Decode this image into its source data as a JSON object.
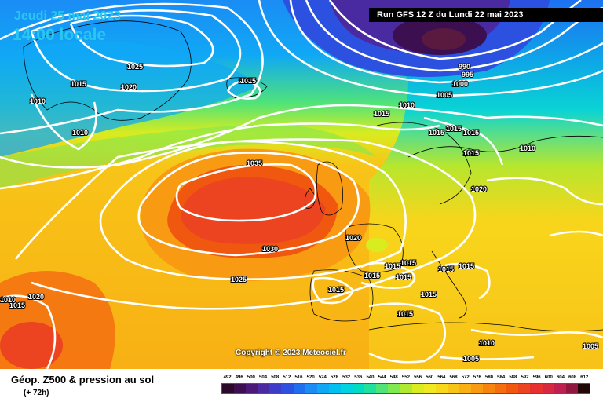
{
  "map": {
    "date_line": "Jeudi 25 mai 2023",
    "time_line": "14:00 locale",
    "run_label": "Run GFS 12 Z du Lundi 22 mai 2023",
    "copyright": "Copyright © 2023 Meteociel.fr",
    "isobars": [
      "1025",
      "1015",
      "1020",
      "1015",
      "1010",
      "1010",
      "1015",
      "1035",
      "1030",
      "1025",
      "1020",
      "1015",
      "1010",
      "990",
      "995",
      "1000",
      "1005",
      "1010",
      "1015",
      "1015",
      "1015",
      "1015",
      "1015",
      "1020",
      "1015",
      "1015",
      "1015",
      "1015",
      "1015",
      "1015",
      "1015",
      "1015",
      "1010",
      "1005",
      "1005",
      "1020",
      "1015",
      "1010"
    ]
  },
  "footer": {
    "title": "Géop. Z500 & pression au sol",
    "subtitle": "(+ 72h)"
  },
  "legend": {
    "values": [
      "492",
      "496",
      "500",
      "504",
      "508",
      "512",
      "516",
      "520",
      "524",
      "528",
      "532",
      "536",
      "540",
      "544",
      "548",
      "552",
      "556",
      "560",
      "564",
      "568",
      "572",
      "576",
      "580",
      "584",
      "588",
      "592",
      "596",
      "600",
      "604",
      "608",
      "612"
    ],
    "colors": [
      "#2a0a2a",
      "#3c1050",
      "#4b1a78",
      "#4a2aa0",
      "#3c3cc8",
      "#2c50e0",
      "#1e6ef0",
      "#1a8cf5",
      "#10a8f5",
      "#00c0f0",
      "#00d2e0",
      "#00dcc0",
      "#20e0a0",
      "#50e478",
      "#80e850",
      "#b0ea30",
      "#d8ec20",
      "#f0e820",
      "#f8d81c",
      "#f8c418",
      "#f8b014",
      "#f89a12",
      "#f88410",
      "#f46e10",
      "#f05810",
      "#ec4420",
      "#e83030",
      "#d82840",
      "#c02050",
      "#901840",
      "#200808"
    ]
  }
}
